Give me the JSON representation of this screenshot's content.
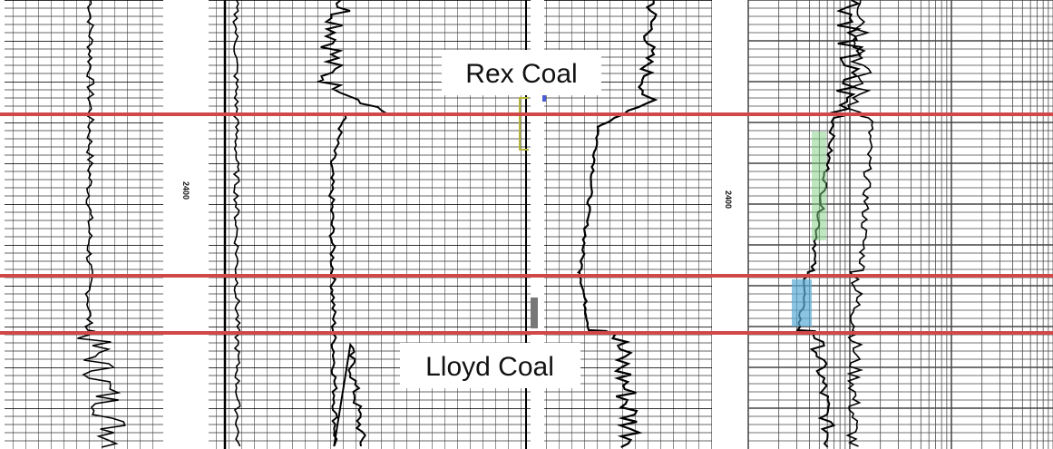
{
  "labels": {
    "top": "Rex Coal",
    "bottom": "Lloyd Coal"
  },
  "depth_markers": [
    "2400",
    "2400"
  ]
}
